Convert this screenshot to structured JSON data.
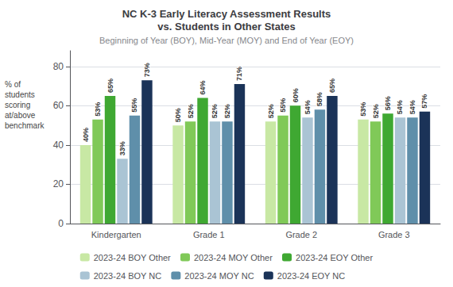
{
  "chart_data": {
    "type": "bar",
    "title": "NC K-3 Early Literacy Assessment Results\nvs. Students in Other States",
    "subtitle": "Beginning of Year (BOY), Mid-Year (MOY) and End of Year (EOY)",
    "ylabel": "% of\nstudents\nscoring\nat/above\nbenchmark",
    "categories": [
      "Kindergarten",
      "Grade 1",
      "Grade 2",
      "Grade 3"
    ],
    "series": [
      {
        "name": "2023-24 BOY Other",
        "color": "#c8e8a4",
        "values": [
          40,
          50,
          52,
          53
        ],
        "value_labels": [
          "40%",
          "50%",
          "52%",
          "53%"
        ]
      },
      {
        "name": "2023-24 MOY Other",
        "color": "#80c958",
        "values": [
          53,
          52,
          55,
          52
        ],
        "value_labels": [
          "53%",
          "52%",
          "55%",
          "52%"
        ]
      },
      {
        "name": "2023-24 EOY Other",
        "color": "#3fa832",
        "values": [
          65,
          64,
          60,
          56
        ],
        "value_labels": [
          "65%",
          "64%",
          "60%",
          "56%"
        ]
      },
      {
        "name": "2023-24 BOY NC",
        "color": "#aac4d4",
        "values": [
          33,
          52,
          54,
          54
        ],
        "value_labels": [
          "33%",
          "52%",
          "54%",
          "54%"
        ]
      },
      {
        "name": "2023-24 MOY NC",
        "color": "#5f8faa",
        "values": [
          55,
          52,
          58,
          54
        ],
        "value_labels": [
          "55%",
          "52%",
          "58%",
          "54%"
        ]
      },
      {
        "name": "2023-24 EOY NC",
        "color": "#1b3358",
        "values": [
          73,
          71,
          65,
          57
        ],
        "value_labels": [
          "73%",
          "71%",
          "65%",
          "57%"
        ]
      }
    ],
    "ylim": [
      0,
      88
    ],
    "yticks": [
      0,
      20,
      40,
      60,
      80
    ],
    "grid": true,
    "legend": "bottom",
    "data_labels": true
  }
}
